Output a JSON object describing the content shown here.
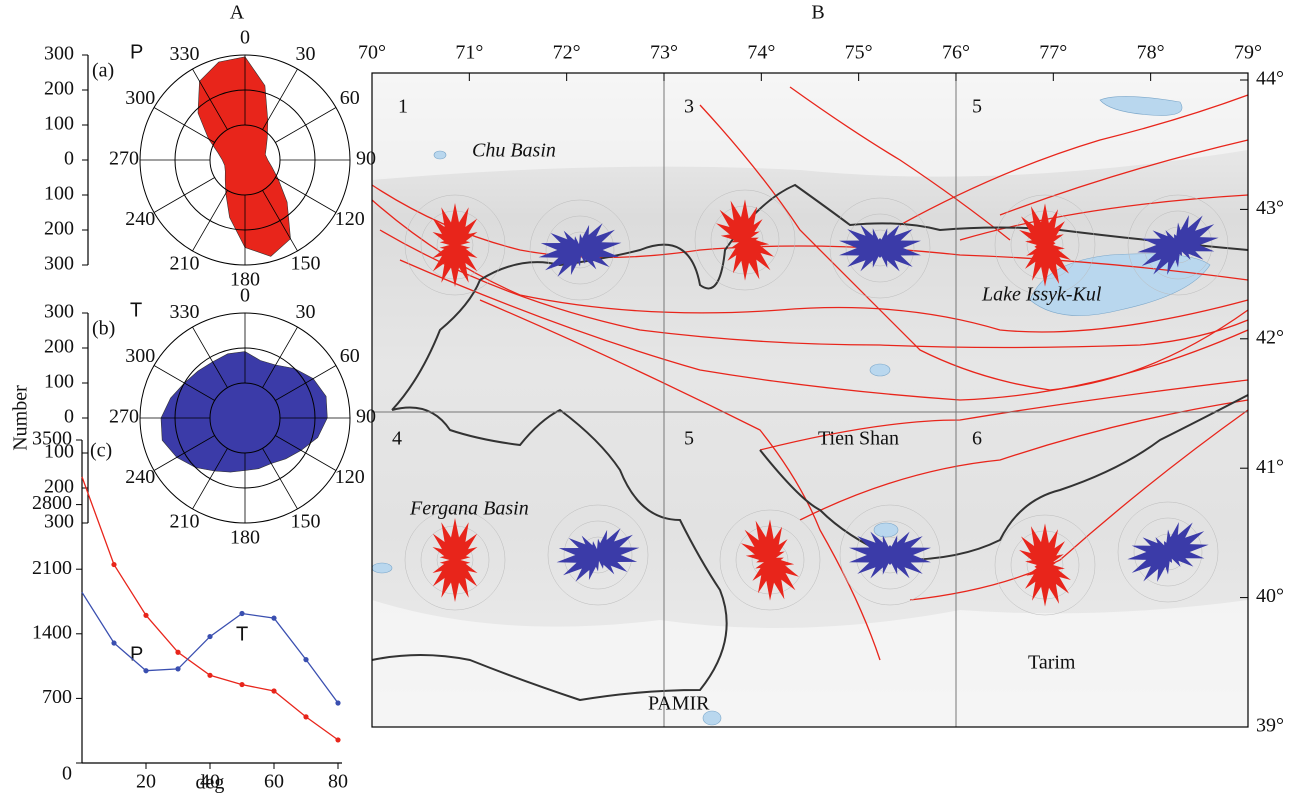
{
  "panel_labels": [
    "A",
    "B"
  ],
  "y_axis_label": "Number",
  "chart_data": [
    {
      "type": "rose",
      "panel_label": "(a)",
      "series_name": "P",
      "name_color": "#e8251b",
      "color": "#e8251b",
      "directions": [
        0,
        15,
        30,
        45,
        60,
        75,
        90,
        105,
        120,
        135,
        150,
        165,
        180,
        195,
        210,
        225,
        240,
        255,
        270,
        285,
        300,
        315,
        330,
        345
      ],
      "values": [
        295,
        220,
        130,
        90,
        70,
        60,
        65,
        80,
        110,
        170,
        260,
        285,
        250,
        170,
        110,
        80,
        65,
        60,
        65,
        80,
        120,
        190,
        260,
        290
      ],
      "rlim": [
        0,
        300
      ],
      "rticks": [
        0,
        100,
        200,
        300
      ],
      "angle_ticks": [
        0,
        30,
        60,
        90,
        120,
        150,
        180,
        210,
        240,
        270,
        300,
        330
      ]
    },
    {
      "type": "rose",
      "panel_label": "(b)",
      "series_name": "T",
      "name_color": "#3a7fc1",
      "color": "#3b3ba8",
      "directions": [
        0,
        15,
        30,
        45,
        60,
        75,
        90,
        105,
        120,
        135,
        150,
        165,
        180,
        195,
        210,
        225,
        240,
        255,
        270,
        285,
        300,
        315,
        330,
        345
      ],
      "values": [
        190,
        170,
        175,
        200,
        225,
        240,
        235,
        215,
        185,
        165,
        150,
        150,
        150,
        160,
        175,
        200,
        225,
        245,
        240,
        220,
        200,
        190,
        185,
        190
      ],
      "rlim": [
        0,
        300
      ],
      "rticks": [
        0,
        100,
        200,
        300
      ],
      "angle_ticks": [
        0,
        30,
        60,
        90,
        120,
        150,
        180,
        210,
        240,
        270,
        300,
        330
      ]
    },
    {
      "type": "line",
      "panel_label": "(c)",
      "x_label": "deg",
      "x": [
        0,
        10,
        20,
        30,
        40,
        50,
        60,
        70,
        80
      ],
      "series": [
        {
          "name": "P",
          "color": "#e8251b",
          "values": [
            3100,
            2150,
            1600,
            1200,
            950,
            850,
            780,
            500,
            250
          ]
        },
        {
          "name": "T",
          "color": "#3a4fb0",
          "values": [
            1850,
            1300,
            1000,
            1020,
            1370,
            1620,
            1570,
            1120,
            650
          ]
        }
      ],
      "xlim": [
        0,
        80
      ],
      "xticks": [
        20,
        40,
        60,
        80
      ],
      "ylim": [
        0,
        3500
      ],
      "yticks": [
        0,
        700,
        1400,
        2100,
        2800,
        3500
      ]
    }
  ],
  "map": {
    "lon_ticks": [
      {
        "value": 70,
        "label": "70°"
      },
      {
        "value": 71,
        "label": "71°"
      },
      {
        "value": 72,
        "label": "72°"
      },
      {
        "value": 73,
        "label": "73°"
      },
      {
        "value": 74,
        "label": "74°"
      },
      {
        "value": 75,
        "label": "75°"
      },
      {
        "value": 76,
        "label": "76°"
      },
      {
        "value": 77,
        "label": "77°"
      },
      {
        "value": 78,
        "label": "78°"
      },
      {
        "value": 79,
        "label": "79°"
      }
    ],
    "lat_ticks": [
      {
        "value": 44,
        "label": "44°"
      },
      {
        "value": 43,
        "label": "43°"
      },
      {
        "value": 42,
        "label": "42°"
      },
      {
        "value": 41,
        "label": "41°"
      },
      {
        "value": 40,
        "label": "40°"
      },
      {
        "value": 39,
        "label": "39°"
      }
    ],
    "region_numbers": [
      "1",
      "3",
      "5",
      "4",
      "5",
      "6"
    ],
    "places": [
      "Chu Basin",
      "Lake Issyk-Kul",
      "Tien Shan",
      "Fergana Basin",
      "PAMIR",
      "Tarim"
    ]
  }
}
